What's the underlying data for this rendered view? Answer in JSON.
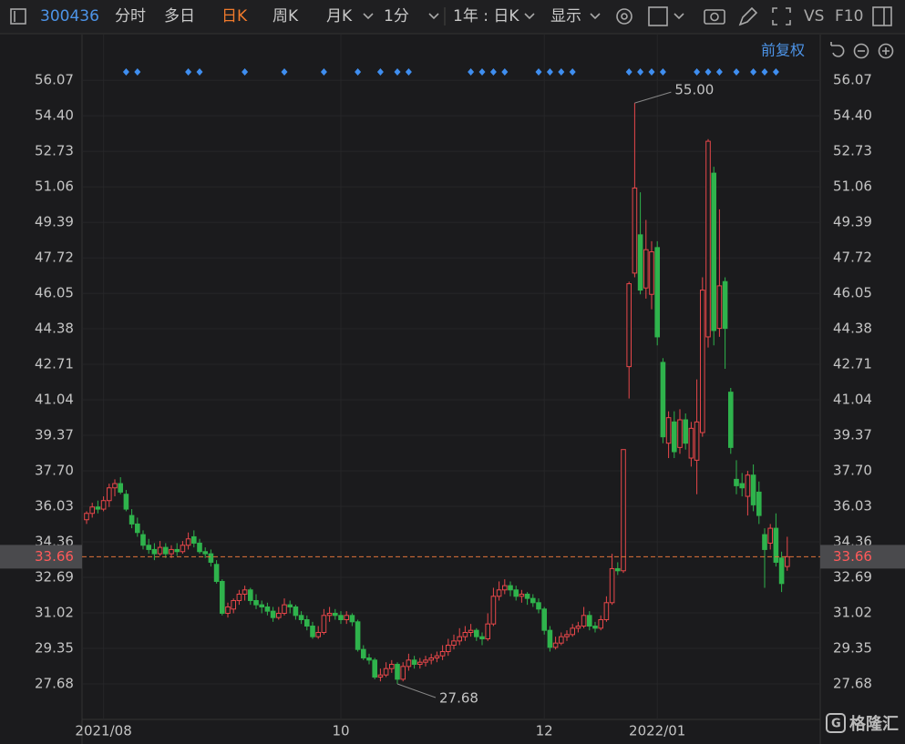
{
  "toolbar": {
    "code": "300436",
    "tabs": [
      "分时",
      "多日",
      "日K",
      "周K",
      "月K",
      "1分"
    ],
    "active_tab": 2,
    "period": "1年 : 日K",
    "display": "显示",
    "vs": "VS",
    "f10": "F10"
  },
  "adjust": "前复权",
  "watermark": "格隆汇",
  "chart_data": {
    "type": "candlestick",
    "up_color": "#e8474a",
    "down_color": "#2fb34c",
    "ylim": [
      26.01,
      58.13
    ],
    "yticks": [
      56.07,
      {
        "value": 54.4,
        "label": "54.40"
      },
      52.73,
      51.06,
      49.39,
      47.72,
      46.05,
      44.38,
      42.71,
      41.04,
      39.37,
      {
        "value": 37.7,
        "label": "37.70"
      },
      36.03,
      34.36,
      32.69,
      31.02,
      29.35,
      27.68
    ],
    "xticks": [
      {
        "value": 3,
        "label": "2021/08"
      },
      {
        "value": 45,
        "label": "10"
      },
      {
        "value": 81,
        "label": "12"
      },
      {
        "value": 101,
        "label": "2022/01"
      }
    ],
    "grid": true,
    "last_price": 33.66,
    "high_mark": {
      "index": 97,
      "value": 55,
      "label": "55.00"
    },
    "low_mark": {
      "index": 55,
      "value": 27.68
    },
    "signals": [
      7,
      9,
      18,
      20,
      28,
      35,
      42,
      48,
      52,
      55,
      57,
      68,
      70,
      72,
      74,
      80,
      82,
      84,
      86,
      96,
      98,
      100,
      102,
      108,
      110,
      112,
      115,
      118,
      120,
      122
    ],
    "candles": [
      [
        35.4,
        35.8,
        35.2,
        35.7
      ],
      [
        35.7,
        36.2,
        35.5,
        36.0
      ],
      [
        36.0,
        36.3,
        35.7,
        35.9
      ],
      [
        35.9,
        36.5,
        35.8,
        36.3
      ],
      [
        36.3,
        37.1,
        36.0,
        36.9
      ],
      [
        36.9,
        37.3,
        36.5,
        37.1
      ],
      [
        37.1,
        37.4,
        36.6,
        36.7
      ],
      [
        36.6,
        36.8,
        35.8,
        35.9
      ],
      [
        35.6,
        35.9,
        35.0,
        35.2
      ],
      [
        35.2,
        35.5,
        34.6,
        34.8
      ],
      [
        34.7,
        34.9,
        34.0,
        34.2
      ],
      [
        34.2,
        34.5,
        33.8,
        34.0
      ],
      [
        34.0,
        34.3,
        33.5,
        33.8
      ],
      [
        33.8,
        34.4,
        33.7,
        34.1
      ],
      [
        34.1,
        34.3,
        33.6,
        33.8
      ],
      [
        33.8,
        34.2,
        33.6,
        34.0
      ],
      [
        34.0,
        34.3,
        33.7,
        33.9
      ],
      [
        33.9,
        34.4,
        33.8,
        34.2
      ],
      [
        34.2,
        34.8,
        34.0,
        34.5
      ],
      [
        34.6,
        34.9,
        34.1,
        34.3
      ],
      [
        34.3,
        34.5,
        33.8,
        33.9
      ],
      [
        33.9,
        34.1,
        33.6,
        33.8
      ],
      [
        33.8,
        34.0,
        33.2,
        33.4
      ],
      [
        33.3,
        33.5,
        32.4,
        32.5
      ],
      [
        32.5,
        32.6,
        30.9,
        31.0
      ],
      [
        31.0,
        31.5,
        30.8,
        31.3
      ],
      [
        31.2,
        31.7,
        31.0,
        31.6
      ],
      [
        31.6,
        32.1,
        31.4,
        31.9
      ],
      [
        31.9,
        32.3,
        31.6,
        32.1
      ],
      [
        32.1,
        32.2,
        31.4,
        31.6
      ],
      [
        31.6,
        31.9,
        31.2,
        31.4
      ],
      [
        31.4,
        31.6,
        31.0,
        31.3
      ],
      [
        31.3,
        31.5,
        30.9,
        31.1
      ],
      [
        31.1,
        31.3,
        30.6,
        30.8
      ],
      [
        30.8,
        31.3,
        30.7,
        31.0
      ],
      [
        31.0,
        31.7,
        30.9,
        31.4
      ],
      [
        31.4,
        31.6,
        31.0,
        31.3
      ],
      [
        31.3,
        31.4,
        30.7,
        30.9
      ],
      [
        30.9,
        31.1,
        30.5,
        30.7
      ],
      [
        30.7,
        30.9,
        30.2,
        30.4
      ],
      [
        30.4,
        30.6,
        29.8,
        29.9
      ],
      [
        29.9,
        30.4,
        29.8,
        30.1
      ],
      [
        30.1,
        31.2,
        30.0,
        30.9
      ],
      [
        30.9,
        31.3,
        30.6,
        31.0
      ],
      [
        31.0,
        31.2,
        30.7,
        30.9
      ],
      [
        30.9,
        31.1,
        30.5,
        30.7
      ],
      [
        30.7,
        31.1,
        30.5,
        30.9
      ],
      [
        30.9,
        31.0,
        30.4,
        30.6
      ],
      [
        30.6,
        30.7,
        29.2,
        29.3
      ],
      [
        29.3,
        29.5,
        28.8,
        28.9
      ],
      [
        28.9,
        29.1,
        28.6,
        28.8
      ],
      [
        28.8,
        28.9,
        27.9,
        28.0
      ],
      [
        28.0,
        28.4,
        27.8,
        28.1
      ],
      [
        28.1,
        28.7,
        28.0,
        28.4
      ],
      [
        28.4,
        28.8,
        28.2,
        28.6
      ],
      [
        28.6,
        28.7,
        27.68,
        27.9
      ],
      [
        27.9,
        28.7,
        27.8,
        28.5
      ],
      [
        28.5,
        29.1,
        28.3,
        28.8
      ],
      [
        28.8,
        29.0,
        28.4,
        28.6
      ],
      [
        28.6,
        28.9,
        28.4,
        28.7
      ],
      [
        28.7,
        29.0,
        28.5,
        28.8
      ],
      [
        28.8,
        29.1,
        28.6,
        28.9
      ],
      [
        28.9,
        29.2,
        28.7,
        29.0
      ],
      [
        29.0,
        29.5,
        28.8,
        29.2
      ],
      [
        29.2,
        29.8,
        29.0,
        29.5
      ],
      [
        29.5,
        30.0,
        29.3,
        29.7
      ],
      [
        29.7,
        30.3,
        29.5,
        29.9
      ],
      [
        29.9,
        30.4,
        29.7,
        30.1
      ],
      [
        30.1,
        30.5,
        29.9,
        30.2
      ],
      [
        30.2,
        30.3,
        29.7,
        29.9
      ],
      [
        29.9,
        30.1,
        29.5,
        29.8
      ],
      [
        29.8,
        31.0,
        29.7,
        30.5
      ],
      [
        30.5,
        32.2,
        30.4,
        31.8
      ],
      [
        31.8,
        32.5,
        31.6,
        32.1
      ],
      [
        32.1,
        32.6,
        31.9,
        32.3
      ],
      [
        32.3,
        32.5,
        31.8,
        32.1
      ],
      [
        32.1,
        32.3,
        31.6,
        31.8
      ],
      [
        31.8,
        32.1,
        31.5,
        31.9
      ],
      [
        31.9,
        32.0,
        31.4,
        31.7
      ],
      [
        31.7,
        31.9,
        31.3,
        31.5
      ],
      [
        31.5,
        31.7,
        31.0,
        31.2
      ],
      [
        31.2,
        31.3,
        30.0,
        30.2
      ],
      [
        30.2,
        30.4,
        29.2,
        29.4
      ],
      [
        29.4,
        29.9,
        29.3,
        29.6
      ],
      [
        29.6,
        30.1,
        29.5,
        29.9
      ],
      [
        29.9,
        30.2,
        29.7,
        30.0
      ],
      [
        30.0,
        30.5,
        29.9,
        30.3
      ],
      [
        30.3,
        30.6,
        30.1,
        30.4
      ],
      [
        30.4,
        31.3,
        30.3,
        30.9
      ],
      [
        30.9,
        31.1,
        30.2,
        30.4
      ],
      [
        30.4,
        30.6,
        30.1,
        30.3
      ],
      [
        30.3,
        30.9,
        30.2,
        30.7
      ],
      [
        30.7,
        31.8,
        30.6,
        31.5
      ],
      [
        31.5,
        33.8,
        31.4,
        33.1
      ],
      [
        33.1,
        33.4,
        32.8,
        33.0
      ],
      [
        33.0,
        38.7,
        32.9,
        38.7
      ],
      [
        42.6,
        46.6,
        41.1,
        46.5
      ],
      [
        47.0,
        55.0,
        46.8,
        51.0
      ],
      [
        48.8,
        50.8,
        46.0,
        46.2
      ],
      [
        46.3,
        49.5,
        45.8,
        48.1
      ],
      [
        46.0,
        48.5,
        45.3,
        48.0
      ],
      [
        48.2,
        48.5,
        43.6,
        44.0
      ],
      [
        42.8,
        43.0,
        39.0,
        39.3
      ],
      [
        39.0,
        40.5,
        38.3,
        40.2
      ],
      [
        40.0,
        40.5,
        38.3,
        38.6
      ],
      [
        38.8,
        40.6,
        38.5,
        40.1
      ],
      [
        40.1,
        40.4,
        38.7,
        39.0
      ],
      [
        38.3,
        40.0,
        37.9,
        39.7
      ],
      [
        38.2,
        42.0,
        36.6,
        40.0
      ],
      [
        39.5,
        46.8,
        39.3,
        46.2
      ],
      [
        44.0,
        53.3,
        43.5,
        53.2
      ],
      [
        51.7,
        52.0,
        43.6,
        44.3
      ],
      [
        44.4,
        50.0,
        44.0,
        46.4
      ],
      [
        46.6,
        46.8,
        42.5,
        44.4
      ],
      [
        41.4,
        41.6,
        38.5,
        38.8
      ],
      [
        37.3,
        38.2,
        36.6,
        37.0
      ],
      [
        37.1,
        37.6,
        36.5,
        36.9
      ],
      [
        36.5,
        37.7,
        35.6,
        37.5
      ],
      [
        37.5,
        38.0,
        35.8,
        36.1
      ],
      [
        36.7,
        37.2,
        35.2,
        35.6
      ],
      [
        34.7,
        35.0,
        32.2,
        34.0
      ],
      [
        34.3,
        35.2,
        34.0,
        35.0
      ],
      [
        35.0,
        35.7,
        33.2,
        33.4
      ],
      [
        33.6,
        33.9,
        32.0,
        32.4
      ],
      [
        33.2,
        34.6,
        33.0,
        33.66
      ]
    ]
  }
}
